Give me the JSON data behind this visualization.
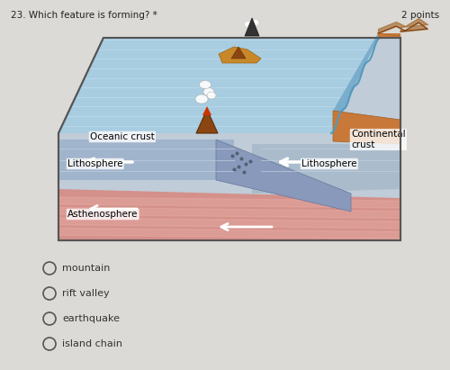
{
  "title": "23. Which feature is forming? *",
  "points_text": "2 points",
  "page_bg": "#dcdad6",
  "diagram_border_color": "#888888",
  "ocean_top_color": "#a8cce0",
  "ocean_water_color": "#b0d0e8",
  "ocean_stripe_color": "#c4dff0",
  "litho_left_color": "#8899bb",
  "litho_right_color": "#99aacc",
  "asthen_color": "#cc9090",
  "asthen_stripe_color": "#dda0a0",
  "subduct_color": "#8899bb",
  "continental_color": "#c87838",
  "continental_dark": "#b06828",
  "continental_cliff_color": "#7aaecc",
  "labels": {
    "oceanic_crust": "Oceanic crust",
    "continental_crust": "Continental\ncrust",
    "lithosphere_left": "Lithosphere",
    "lithosphere_right": "Lithosphere",
    "asthenosphere": "Asthenosphere"
  },
  "choices": [
    "mountain",
    "rift valley",
    "earthquake",
    "island chain"
  ]
}
